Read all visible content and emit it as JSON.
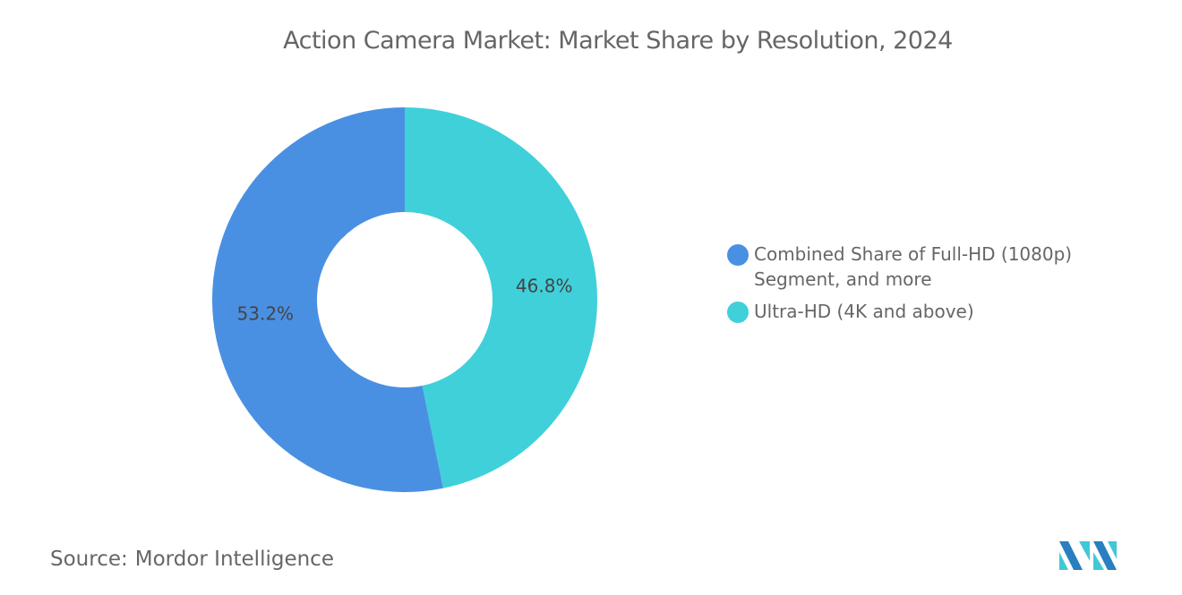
{
  "chart_data": {
    "type": "donut",
    "title": "Action Camera Market: Market Share by Resolution, 2024",
    "slices": [
      {
        "label": "Ultra-HD (4K and above)",
        "value": 46.8,
        "display": "46.8%",
        "color": "#40d0da"
      },
      {
        "label": "Combined Share of Full-HD (1080p) Segment, and more",
        "value": 53.2,
        "display": "53.2%",
        "color": "#4a90e2"
      }
    ],
    "legend": [
      {
        "label": "Combined Share of Full-HD (1080p) Segment, and more",
        "color": "#4a90e2"
      },
      {
        "label": "Ultra-HD (4K and above)",
        "color": "#40d0da"
      }
    ],
    "legend_position": "right"
  },
  "source": {
    "label": "Source:",
    "value": "Mordor Intelligence"
  },
  "logo": {
    "icon": "mordor-intelligence-logo",
    "colors": [
      "#2a7fc0",
      "#40c8d6"
    ]
  }
}
